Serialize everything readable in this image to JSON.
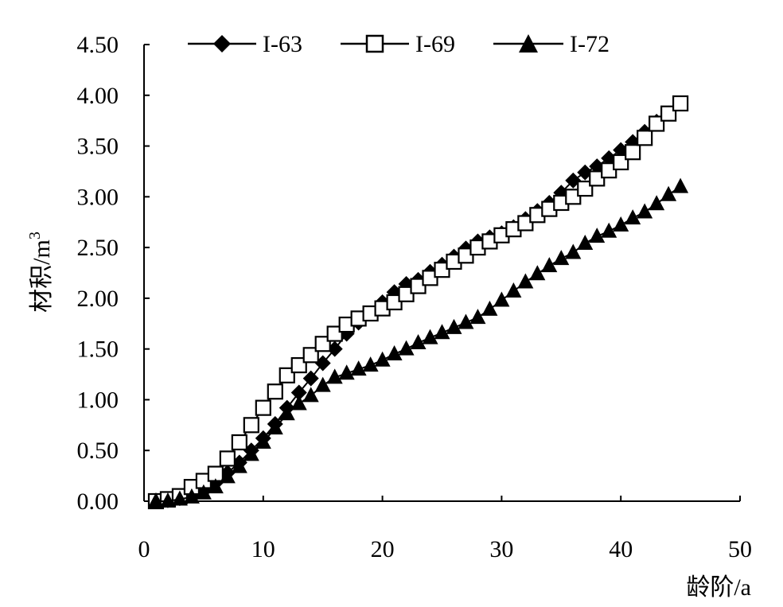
{
  "chart_data": {
    "type": "line",
    "xlabel": "龄阶/a",
    "ylabel_main": "材积/m",
    "ylabel_sup": "3",
    "xlim": [
      0,
      50
    ],
    "ylim": [
      0,
      4.5
    ],
    "xticks": [
      "0",
      "10",
      "20",
      "30",
      "40",
      "50"
    ],
    "yticks": [
      "0.00",
      "0.50",
      "1.00",
      "1.50",
      "2.00",
      "2.50",
      "3.00",
      "3.50",
      "4.00",
      "4.50"
    ],
    "grid": false,
    "legend_position": "top",
    "series": [
      {
        "name": "I-63",
        "marker": "filled-diamond",
        "x": [
          1,
          2,
          3,
          4,
          5,
          6,
          7,
          8,
          9,
          10,
          11,
          12,
          13,
          14,
          15,
          16,
          17,
          18,
          19,
          20,
          21,
          22,
          23,
          24,
          25,
          26,
          27,
          28,
          29,
          30,
          31,
          32,
          33,
          34,
          35,
          36,
          37,
          38,
          39,
          40,
          41,
          42,
          43,
          44,
          45
        ],
        "y": [
          0.0,
          0.01,
          0.03,
          0.06,
          0.1,
          0.18,
          0.28,
          0.38,
          0.5,
          0.62,
          0.76,
          0.92,
          1.07,
          1.21,
          1.36,
          1.5,
          1.65,
          1.76,
          1.85,
          1.96,
          2.06,
          2.14,
          2.18,
          2.26,
          2.33,
          2.41,
          2.49,
          2.56,
          2.6,
          2.64,
          2.7,
          2.78,
          2.86,
          2.94,
          3.04,
          3.16,
          3.24,
          3.3,
          3.38,
          3.46,
          3.54,
          3.64,
          3.74,
          3.82,
          3.92
        ]
      },
      {
        "name": "I-69",
        "marker": "open-square",
        "x": [
          1,
          2,
          3,
          4,
          5,
          6,
          7,
          8,
          9,
          10,
          11,
          12,
          13,
          14,
          15,
          16,
          17,
          18,
          19,
          20,
          21,
          22,
          23,
          24,
          25,
          26,
          27,
          28,
          29,
          30,
          31,
          32,
          33,
          34,
          35,
          36,
          37,
          38,
          39,
          40,
          41,
          42,
          43,
          44,
          45
        ],
        "y": [
          0.0,
          0.02,
          0.05,
          0.14,
          0.2,
          0.27,
          0.42,
          0.58,
          0.75,
          0.92,
          1.08,
          1.24,
          1.34,
          1.44,
          1.55,
          1.65,
          1.74,
          1.8,
          1.85,
          1.9,
          1.96,
          2.04,
          2.12,
          2.2,
          2.28,
          2.36,
          2.42,
          2.5,
          2.56,
          2.62,
          2.68,
          2.74,
          2.82,
          2.88,
          2.94,
          3.0,
          3.08,
          3.18,
          3.26,
          3.34,
          3.44,
          3.58,
          3.72,
          3.82,
          3.92
        ]
      },
      {
        "name": "I-72",
        "marker": "filled-triangle",
        "x": [
          1,
          2,
          3,
          4,
          5,
          6,
          7,
          8,
          9,
          10,
          11,
          12,
          13,
          14,
          15,
          16,
          17,
          18,
          19,
          20,
          21,
          22,
          23,
          24,
          25,
          26,
          27,
          28,
          29,
          30,
          31,
          32,
          33,
          34,
          35,
          36,
          37,
          38,
          39,
          40,
          41,
          42,
          43,
          44,
          45
        ],
        "y": [
          0.0,
          0.0,
          0.02,
          0.04,
          0.08,
          0.14,
          0.24,
          0.34,
          0.46,
          0.58,
          0.72,
          0.86,
          0.96,
          1.04,
          1.14,
          1.22,
          1.26,
          1.3,
          1.34,
          1.39,
          1.45,
          1.5,
          1.56,
          1.61,
          1.66,
          1.71,
          1.76,
          1.81,
          1.89,
          1.98,
          2.07,
          2.16,
          2.24,
          2.32,
          2.39,
          2.45,
          2.54,
          2.61,
          2.66,
          2.72,
          2.79,
          2.85,
          2.93,
          3.02,
          3.1
        ]
      }
    ]
  }
}
